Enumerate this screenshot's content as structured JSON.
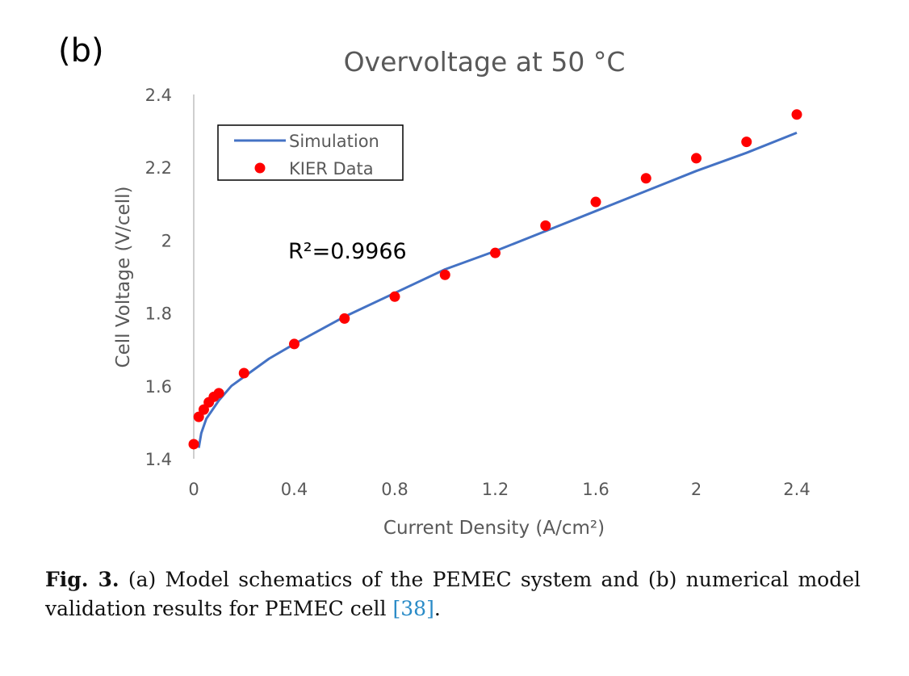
{
  "panel_label": "(b)",
  "annotation": "R²=0.9966",
  "caption": {
    "figure_label": "Fig. 3.",
    "text_before_ref": " (a) Model schematics of the PEMEC system and (b) numerical model validation results for PEMEC cell ",
    "ref": "[38]",
    "text_after_ref": "."
  },
  "colors": {
    "simulation": "#4472C4",
    "data": "#FF0000",
    "axis": "#BFBFBF",
    "text": "#595959"
  },
  "chart_data": {
    "type": "line",
    "title": "Overvoltage at 50 °C",
    "xlabel": "Current Density (A/cm²)",
    "ylabel": "Cell Voltage (V/cell)",
    "xlim": [
      0,
      2.4
    ],
    "ylim": [
      1.4,
      2.4
    ],
    "x_ticks": [
      "0",
      "0.4",
      "0.8",
      "1.2",
      "1.6",
      "2",
      "2.4"
    ],
    "y_ticks": [
      "1.4",
      "1.6",
      "1.8",
      "2",
      "2.2",
      "2.4"
    ],
    "grid": false,
    "legend_position": "top-left",
    "series": [
      {
        "name": "Simulation",
        "style": "line",
        "x": [
          0.02,
          0.03,
          0.05,
          0.08,
          0.1,
          0.15,
          0.2,
          0.3,
          0.4,
          0.6,
          0.8,
          1.0,
          1.2,
          1.4,
          1.6,
          1.8,
          2.0,
          2.2,
          2.4
        ],
        "y": [
          1.43,
          1.47,
          1.51,
          1.54,
          1.56,
          1.6,
          1.625,
          1.675,
          1.715,
          1.79,
          1.855,
          1.92,
          1.97,
          2.025,
          2.08,
          2.135,
          2.19,
          2.24,
          2.295
        ]
      },
      {
        "name": "KIER Data",
        "style": "scatter",
        "x": [
          0.0,
          0.02,
          0.04,
          0.06,
          0.08,
          0.1,
          0.2,
          0.4,
          0.6,
          0.8,
          1.0,
          1.2,
          1.4,
          1.6,
          1.8,
          2.0,
          2.2,
          2.4
        ],
        "y": [
          1.44,
          1.515,
          1.535,
          1.555,
          1.57,
          1.58,
          1.635,
          1.715,
          1.785,
          1.845,
          1.905,
          1.965,
          2.04,
          2.105,
          2.17,
          2.225,
          2.27,
          2.345
        ]
      }
    ]
  }
}
